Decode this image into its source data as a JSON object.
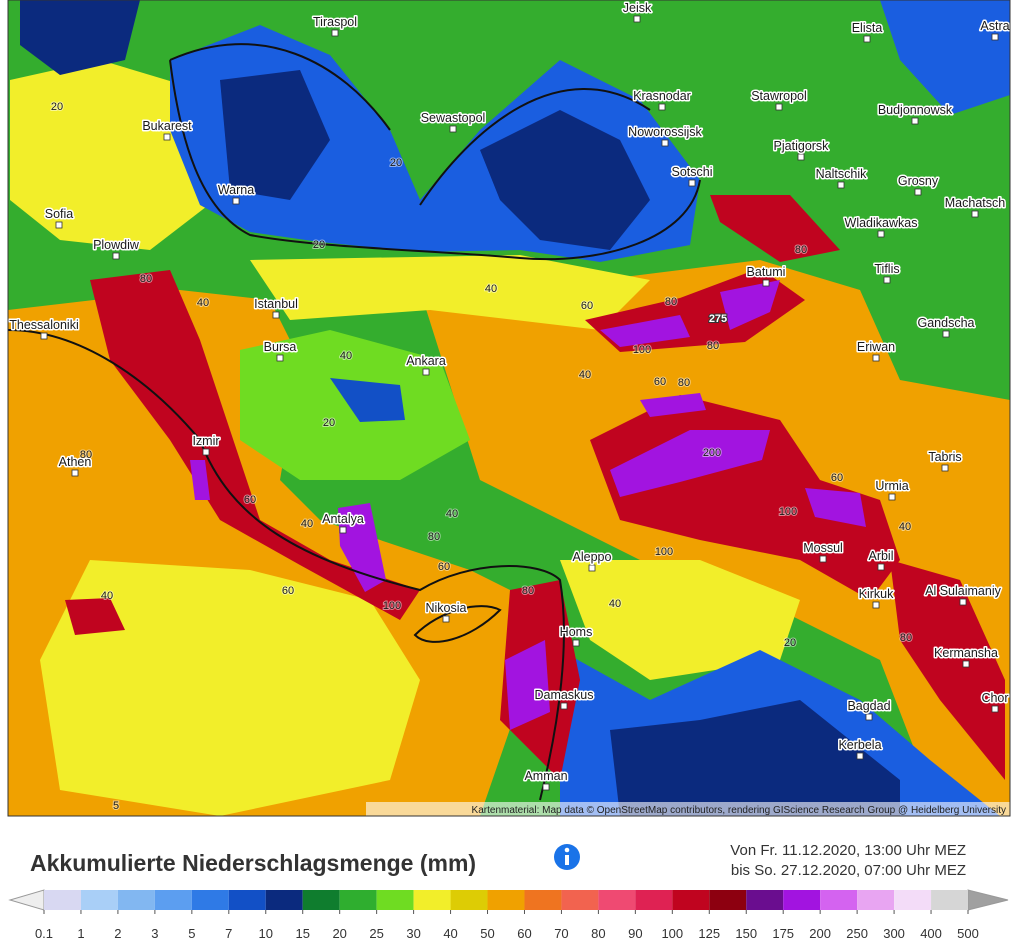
{
  "map": {
    "cities": [
      "Tiraspol",
      "Jeisk",
      "Elista",
      "Astra",
      "Krasnodar",
      "Stawropol",
      "Bukarest",
      "Sewastopol",
      "Noworossijsk",
      "Budjonnowsk",
      "Pjatigorsk",
      "Warna",
      "Sotschi",
      "Naltschik",
      "Grosny",
      "Sofia",
      "Machatsch",
      "Wladikawkas",
      "Plowdiw",
      "Batumi",
      "Tiflis",
      "Istanbul",
      "Thessaloniki",
      "Gandscha",
      "Bursa",
      "Ankara",
      "Eriwan",
      "Izmir",
      "Athen",
      "Tabris",
      "Urmia",
      "Antalya",
      "Mossul",
      "Arbil",
      "Aleppo",
      "Kirkuk",
      "Al Sulaimaniy",
      "Nikosia",
      "Homs",
      "Kermansha",
      "Damaskus",
      "Chor",
      "Bagdad",
      "Kerbela",
      "Amman"
    ],
    "contour_labels": [
      "20",
      "20",
      "20",
      "20",
      "20",
      "40",
      "40",
      "40",
      "40",
      "40",
      "40",
      "40",
      "40",
      "40",
      "60",
      "60",
      "60",
      "60",
      "60",
      "60",
      "80",
      "80",
      "80",
      "80",
      "80",
      "80",
      "80",
      "80",
      "80",
      "100",
      "100",
      "100",
      "100",
      "200",
      "275",
      "5"
    ],
    "attribution": "Kartenmaterial: Map data © OpenStreetMap contributors, rendering GIScience Research Group @ Heidelberg University"
  },
  "header": {
    "title": "Akkumulierte Niederschlagsmenge (mm)",
    "period_from": "Von Fr. 11.12.2020, 13:00 Uhr MEZ",
    "period_to": "bis So. 27.12.2020, 07:00 Uhr MEZ"
  },
  "legend": {
    "ticks": [
      0.1,
      1,
      2,
      3,
      5,
      7,
      10,
      15,
      20,
      25,
      30,
      40,
      50,
      60,
      70,
      80,
      90,
      100,
      125,
      150,
      175,
      200,
      250,
      300,
      400,
      500
    ],
    "colors": [
      "#d8d8f2",
      "#a9cff7",
      "#82b7f1",
      "#5c9ef0",
      "#2f7ae6",
      "#1250c6",
      "#0b2a7e",
      "#0f7d2e",
      "#2fae2f",
      "#6fdc22",
      "#f2ee2a",
      "#ddcc05",
      "#f0a100",
      "#ef7420",
      "#f2634f",
      "#ef4a72",
      "#df2253",
      "#c0041f",
      "#8d0010",
      "#6a0d8f",
      "#a214e0",
      "#d463f0",
      "#e8a5f2",
      "#f3dcf8",
      "#d6d6d6"
    ],
    "below_color": "#eeeeee",
    "above_color": "#a0a0a0"
  }
}
